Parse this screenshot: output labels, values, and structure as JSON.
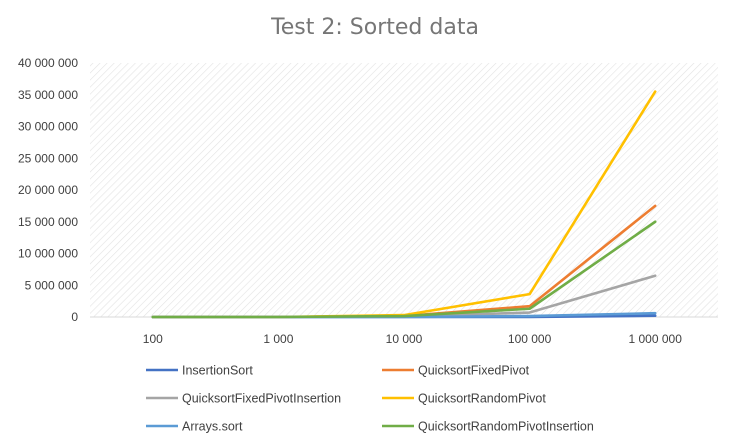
{
  "chart_data": {
    "type": "line",
    "title": "Test 2: Sorted data",
    "xlabel": "",
    "ylabel": "",
    "categories": [
      "100",
      "1 000",
      "10 000",
      "100 000",
      "1 000 000"
    ],
    "ylim": [
      0,
      40000000
    ],
    "yticks": [
      0,
      5000000,
      10000000,
      15000000,
      20000000,
      25000000,
      30000000,
      35000000,
      40000000
    ],
    "ytick_labels": [
      "0",
      "5 000 000",
      "10 000 000",
      "15 000 000",
      "20 000 000",
      "25 000 000",
      "30 000 000",
      "35 000 000",
      "40 000 000"
    ],
    "grid": false,
    "plot_background": "hatched",
    "legend_position": "bottom",
    "series": [
      {
        "name": "InsertionSort",
        "color": "#4472C4",
        "values": [
          0,
          0,
          0,
          0,
          200000
        ]
      },
      {
        "name": "QuicksortFixedPivot",
        "color": "#ED7D31",
        "values": [
          0,
          0,
          150000,
          1700000,
          17500000
        ]
      },
      {
        "name": "QuicksortFixedPivotInsertion",
        "color": "#A5A5A5",
        "values": [
          0,
          0,
          80000,
          700000,
          6500000
        ]
      },
      {
        "name": "QuicksortRandomPivot",
        "color": "#FFC000",
        "values": [
          0,
          0,
          300000,
          3600000,
          35500000
        ]
      },
      {
        "name": "Arrays.sort",
        "color": "#5B9BD5",
        "values": [
          0,
          0,
          0,
          150000,
          600000
        ]
      },
      {
        "name": "QuicksortRandomPivotInsertion",
        "color": "#70AD47",
        "values": [
          0,
          0,
          150000,
          1300000,
          15000000
        ]
      }
    ]
  }
}
